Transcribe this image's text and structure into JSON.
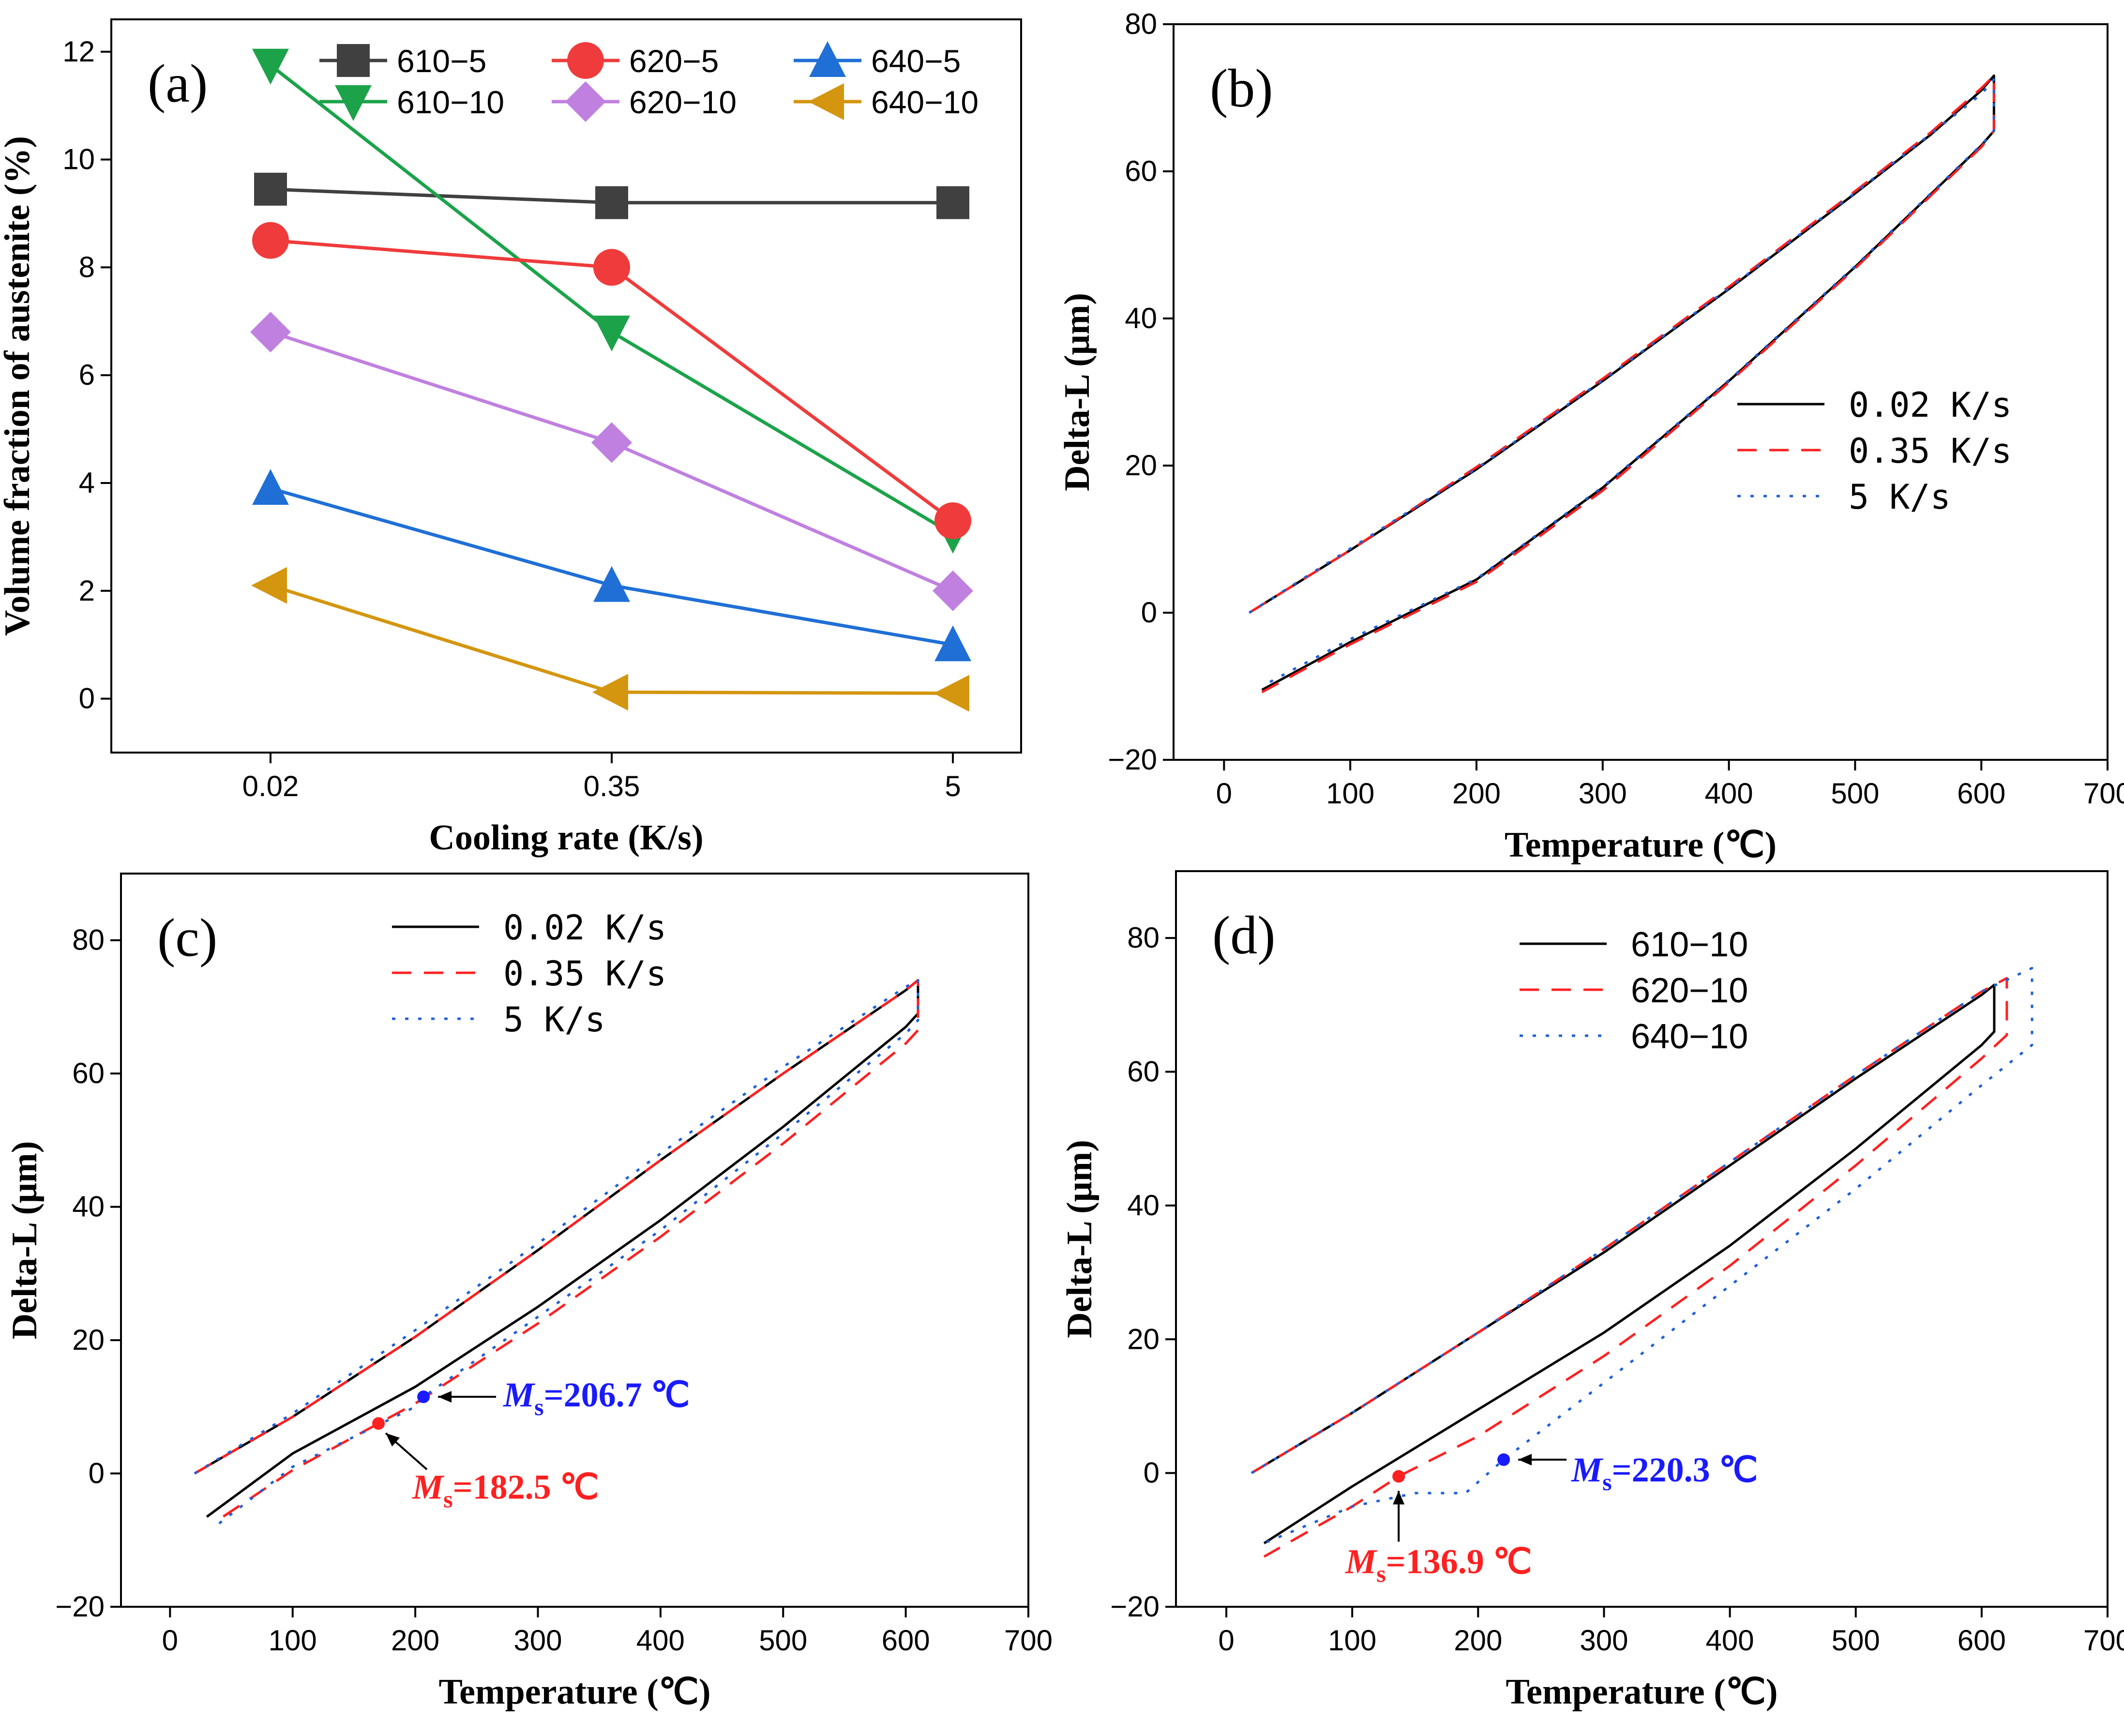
{
  "figure": {
    "background": "#ffffff"
  },
  "chart_data": [
    {
      "id": "a",
      "type": "line",
      "panel_label": "(a)",
      "xlabel": "Cooling rate (K/s)",
      "ylabel": "Volume fraction of austenite (%)",
      "categories": [
        "0.02",
        "0.35",
        "5"
      ],
      "ylim": [
        -1,
        12.6
      ],
      "yticks": [
        0,
        2,
        4,
        6,
        8,
        10,
        12
      ],
      "legend_position": "top",
      "series": [
        {
          "name": "610−5",
          "color": "#404040",
          "marker": "square",
          "values": [
            9.45,
            9.2,
            9.2
          ]
        },
        {
          "name": "610−10",
          "color": "#1ca34a",
          "marker": "triangle-down",
          "values": [
            11.75,
            6.8,
            3.05
          ]
        },
        {
          "name": "620−5",
          "color": "#ef3b3b",
          "marker": "circle",
          "values": [
            8.5,
            8.0,
            3.3
          ]
        },
        {
          "name": "620−10",
          "color": "#c080e0",
          "marker": "diamond",
          "values": [
            6.8,
            4.75,
            2.0
          ]
        },
        {
          "name": "640−5",
          "color": "#1f6fd6",
          "marker": "triangle-up",
          "values": [
            3.9,
            2.1,
            1.0
          ]
        },
        {
          "name": "640−10",
          "color": "#d4960f",
          "marker": "triangle-left",
          "values": [
            2.1,
            0.12,
            0.1
          ]
        }
      ]
    },
    {
      "id": "b",
      "type": "line",
      "panel_label": "(b)",
      "xlabel": "Temperature (℃)",
      "ylabel": "Delta-L (μm)",
      "xlim": [
        -40,
        700
      ],
      "ylim": [
        -20,
        80
      ],
      "xticks": [
        0,
        100,
        200,
        300,
        400,
        500,
        600,
        700
      ],
      "yticks": [
        -20,
        0,
        20,
        40,
        60,
        80
      ],
      "legend_position": "center-right",
      "series": [
        {
          "name": "0.02 K/s",
          "color": "#000000",
          "dash": "solid",
          "x": [
            20,
            100,
            200,
            300,
            400,
            500,
            560,
            600,
            610,
            610,
            600,
            500,
            400,
            300,
            200,
            100,
            30
          ],
          "y": [
            0,
            8.5,
            19.5,
            31.5,
            44,
            57,
            65,
            71,
            73,
            65.5,
            63.5,
            47,
            31.5,
            17,
            4.5,
            -4,
            -10.5
          ]
        },
        {
          "name": "0.35 K/s",
          "color": "#ff2020",
          "dash": "dashed",
          "x": [
            20,
            100,
            200,
            300,
            400,
            500,
            560,
            600,
            610,
            610,
            600,
            500,
            400,
            300,
            200,
            100,
            30
          ],
          "y": [
            0,
            8.5,
            19.8,
            31.8,
            44.3,
            57.3,
            65.3,
            71.3,
            73,
            65.5,
            63.3,
            46.8,
            31.3,
            16.6,
            4.2,
            -4.3,
            -10.8
          ]
        },
        {
          "name": "5 K/s",
          "color": "#1f5fd6",
          "dash": "dotted",
          "x": [
            20,
            100,
            200,
            300,
            400,
            500,
            560,
            600,
            610,
            610,
            600,
            500,
            400,
            300,
            200,
            100,
            30
          ],
          "y": [
            0,
            8.7,
            19.6,
            31.6,
            44.1,
            57.1,
            65.1,
            70.5,
            72.5,
            65.5,
            63.6,
            47.1,
            31.6,
            17.1,
            4.6,
            -3.6,
            -10
          ]
        }
      ]
    },
    {
      "id": "c",
      "type": "line",
      "panel_label": "(c)",
      "xlabel": "Temperature (℃)",
      "ylabel": "Delta-L (μm)",
      "xlim": [
        -40,
        700
      ],
      "ylim": [
        -20,
        90
      ],
      "xticks": [
        0,
        100,
        200,
        300,
        400,
        500,
        600,
        700
      ],
      "yticks": [
        -20,
        0,
        20,
        40,
        60,
        80
      ],
      "legend_position": "top-center",
      "series": [
        {
          "name": "0.02 K/s",
          "color": "#000000",
          "dash": "solid",
          "x": [
            20,
            100,
            200,
            300,
            400,
            500,
            600,
            610,
            610,
            600,
            500,
            400,
            300,
            200,
            100,
            30
          ],
          "y": [
            0,
            8.5,
            20.5,
            33.5,
            47,
            60,
            72.5,
            74,
            69,
            67,
            52,
            38,
            25,
            13,
            3,
            -6.5
          ]
        },
        {
          "name": "0.35 K/s",
          "color": "#ff2020",
          "dash": "dashed",
          "x": [
            20,
            100,
            200,
            300,
            400,
            500,
            600,
            610,
            610,
            600,
            500,
            400,
            300,
            200,
            100,
            35
          ],
          "y": [
            0,
            8.5,
            20.5,
            33.5,
            47,
            60,
            72.5,
            74,
            66.5,
            64.5,
            49.5,
            35.5,
            22.5,
            10.5,
            0.5,
            -7.5
          ]
        },
        {
          "name": "5 K/s",
          "color": "#1f5fd6",
          "dash": "dotted",
          "x": [
            20,
            100,
            200,
            300,
            400,
            500,
            600,
            610,
            610,
            600,
            500,
            400,
            300,
            206.7,
            200,
            100,
            40
          ],
          "y": [
            0,
            9,
            21.5,
            34.5,
            48,
            61,
            73,
            74,
            68,
            66,
            51,
            36.5,
            23.5,
            11.5,
            10,
            1,
            -7.5
          ]
        }
      ],
      "annotations": [
        {
          "label": "M",
          "sub": "s",
          "text": "=206.7 ℃",
          "color": "#1a1aff",
          "x": 206.7,
          "y": 11.5
        },
        {
          "label": "M",
          "sub": "s",
          "text": "=182.5 ℃",
          "color": "#ff2020",
          "x": 170,
          "y": 7.5
        }
      ]
    },
    {
      "id": "d",
      "type": "line",
      "panel_label": "(d)",
      "xlabel": "Temperature (℃)",
      "ylabel": "Delta-L (μm)",
      "xlim": [
        -40,
        700
      ],
      "ylim": [
        -20,
        90
      ],
      "xticks": [
        0,
        100,
        200,
        300,
        400,
        500,
        600,
        700
      ],
      "yticks": [
        -20,
        0,
        20,
        40,
        60,
        80
      ],
      "legend_position": "top-center",
      "series": [
        {
          "name": "610−10",
          "color": "#000000",
          "dash": "solid",
          "x": [
            20,
            100,
            200,
            300,
            400,
            500,
            600,
            610,
            610,
            600,
            500,
            400,
            300,
            200,
            100,
            30
          ],
          "y": [
            0,
            9,
            21,
            33,
            46,
            59,
            71.5,
            73,
            66,
            64,
            48.5,
            34,
            21,
            9.5,
            -2,
            -10.5
          ]
        },
        {
          "name": "620−10",
          "color": "#ff2020",
          "dash": "dashed",
          "x": [
            20,
            100,
            200,
            300,
            400,
            500,
            600,
            620,
            620,
            600,
            500,
            400,
            300,
            200,
            136.9,
            100,
            30
          ],
          "y": [
            0,
            9,
            21,
            33.5,
            46.5,
            59.5,
            72,
            74,
            65.5,
            62,
            46,
            31,
            17.5,
            5.5,
            -0.5,
            -5,
            -12.5
          ]
        },
        {
          "name": "640−10",
          "color": "#1f5fd6",
          "dash": "dotted",
          "x": [
            20,
            100,
            200,
            300,
            400,
            500,
            600,
            640,
            640,
            600,
            500,
            400,
            300,
            220.3,
            190,
            150,
            100,
            30
          ],
          "y": [
            0,
            9,
            21,
            33.5,
            46.5,
            59.5,
            72,
            75.5,
            64,
            58,
            42.5,
            28,
            13.5,
            2,
            -3,
            -3,
            -5,
            -10.5
          ]
        }
      ],
      "annotations": [
        {
          "label": "M",
          "sub": "s",
          "text": "=220.3 ℃",
          "color": "#1a1aff",
          "x": 220.3,
          "y": 2
        },
        {
          "label": "M",
          "sub": "s",
          "text": "=136.9 ℃",
          "color": "#ff2020",
          "x": 136.9,
          "y": -0.5
        }
      ]
    }
  ]
}
